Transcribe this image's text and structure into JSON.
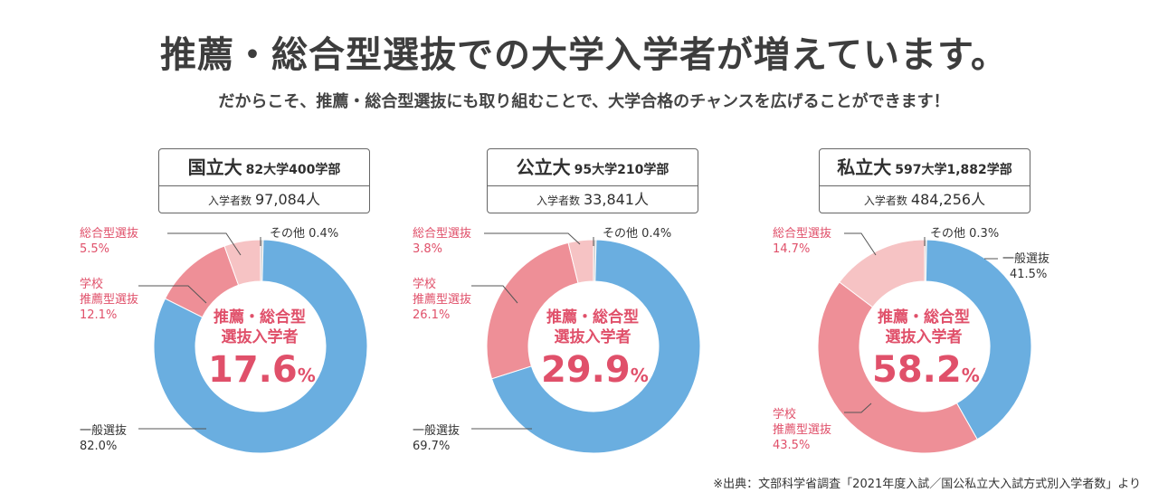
{
  "title": "推薦・総合型選抜での大学入学者が増えています。",
  "subtitle": "だからこそ、推薦・総合型選抜にも取り組むことで、大学合格のチャンスを広げることができます！",
  "source": "※出典：文部科学省調査「2021年度入試／国公私立大入試方式別入学者数」より",
  "center_caption_1": "推薦・総合型",
  "center_caption_2": "選抜入学者",
  "percent_unit": "%",
  "entrants_label": "入学者数",
  "colors": {
    "general": "#6aaee0",
    "school": "#ee8f97",
    "comprehensive": "#f6c3c4",
    "other": "#cfcfcf",
    "accent": "#e0506a"
  },
  "chart_data": [
    {
      "type": "pie",
      "category": "国立大",
      "detail": "82大学400学部",
      "entrants": "97,084人",
      "center_value": "17.6",
      "segments": [
        {
          "name": "その他",
          "label": "その他",
          "value": 0.4,
          "pct": "0.4%",
          "color": "#cfcfcf"
        },
        {
          "name": "一般選抜",
          "label": "一般選抜",
          "value": 82.0,
          "pct": "82.0%",
          "color": "#6aaee0"
        },
        {
          "name": "学校推薦型選抜",
          "label_line1": "学校",
          "label_line2": "推薦型選抜",
          "value": 12.1,
          "pct": "12.1%",
          "color": "#ee8f97"
        },
        {
          "name": "総合型選抜",
          "label": "総合型選抜",
          "value": 5.5,
          "pct": "5.5%",
          "color": "#f6c3c4"
        }
      ]
    },
    {
      "type": "pie",
      "category": "公立大",
      "detail": "95大学210学部",
      "entrants": "33,841人",
      "center_value": "29.9",
      "segments": [
        {
          "name": "その他",
          "label": "その他",
          "value": 0.4,
          "pct": "0.4%",
          "color": "#cfcfcf"
        },
        {
          "name": "一般選抜",
          "label": "一般選抜",
          "value": 69.7,
          "pct": "69.7%",
          "color": "#6aaee0"
        },
        {
          "name": "学校推薦型選抜",
          "label_line1": "学校",
          "label_line2": "推薦型選抜",
          "value": 26.1,
          "pct": "26.1%",
          "color": "#ee8f97"
        },
        {
          "name": "総合型選抜",
          "label": "総合型選抜",
          "value": 3.8,
          "pct": "3.8%",
          "color": "#f6c3c4"
        }
      ]
    },
    {
      "type": "pie",
      "category": "私立大",
      "detail": "597大学1,882学部",
      "entrants": "484,256人",
      "center_value": "58.2",
      "segments": [
        {
          "name": "その他",
          "label": "その他",
          "value": 0.3,
          "pct": "0.3%",
          "color": "#cfcfcf"
        },
        {
          "name": "一般選抜",
          "label": "一般選抜",
          "value": 41.5,
          "pct": "41.5%",
          "color": "#6aaee0"
        },
        {
          "name": "学校推薦型選抜",
          "label_line1": "学校",
          "label_line2": "推薦型選抜",
          "value": 43.5,
          "pct": "43.5%",
          "color": "#ee8f97"
        },
        {
          "name": "総合型選抜",
          "label": "総合型選抜",
          "value": 14.7,
          "pct": "14.7%",
          "color": "#f6c3c4"
        }
      ]
    }
  ]
}
